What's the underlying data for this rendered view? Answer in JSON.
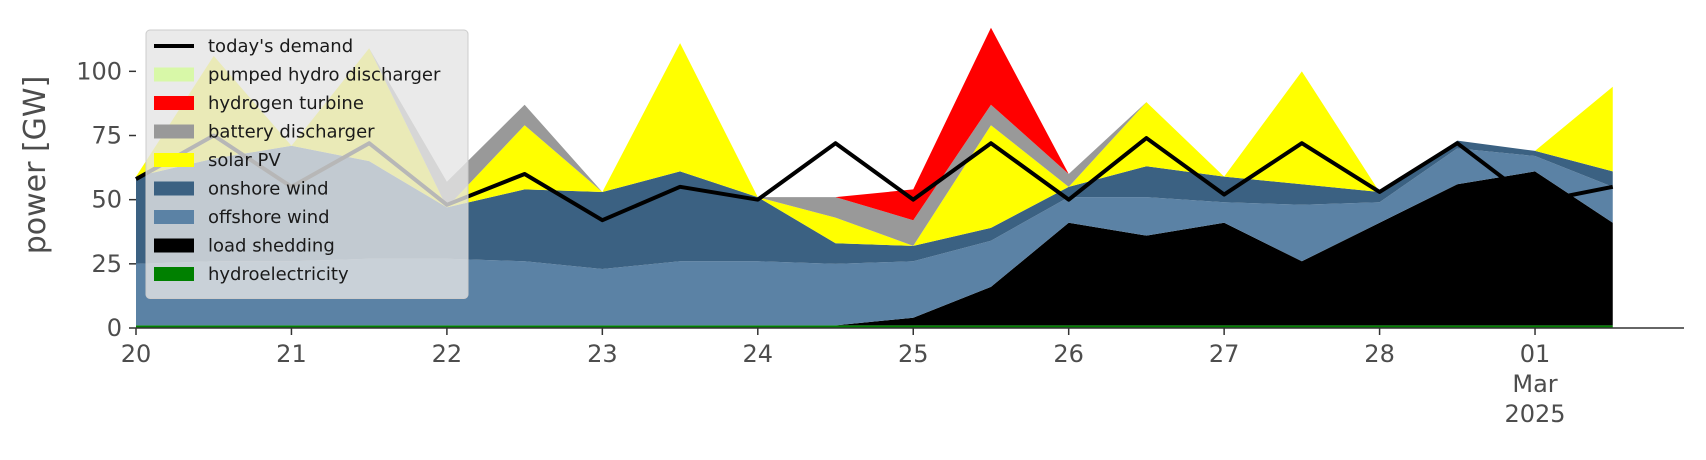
{
  "chart_data": {
    "type": "area",
    "stacked": true,
    "ylabel": "power [GW]",
    "ylim": [
      0,
      120
    ],
    "yticks": [
      0,
      25,
      50,
      75,
      100
    ],
    "xlim": [
      "2025-02-20T00:00",
      "2025-03-01T23:00"
    ],
    "xticks": [
      {
        "label": "20",
        "x": "2025-02-20"
      },
      {
        "label": "21",
        "x": "2025-02-21"
      },
      {
        "label": "22",
        "x": "2025-02-22"
      },
      {
        "label": "23",
        "x": "2025-02-23"
      },
      {
        "label": "24",
        "x": "2025-02-24"
      },
      {
        "label": "25",
        "x": "2025-02-25"
      },
      {
        "label": "26",
        "x": "2025-02-26"
      },
      {
        "label": "27",
        "x": "2025-02-27"
      },
      {
        "label": "28",
        "x": "2025-02-28"
      },
      {
        "label": "01",
        "x": "2025-03-01"
      }
    ],
    "xtick_sublabel": {
      "x": "2025-03-01",
      "month": "Mar",
      "year": "2025"
    },
    "grid": false,
    "legend_position": "top-left",
    "series_order": [
      "hydroelectricity",
      "load shedding",
      "offshore wind",
      "onshore wind",
      "solar PV",
      "battery discharger",
      "hydrogen turbine",
      "pumped hydro discharger"
    ],
    "series": [
      {
        "name": "hydroelectricity",
        "color": "#008000",
        "values": [
          1,
          1,
          1,
          1,
          1,
          1,
          1,
          1,
          1,
          1,
          1,
          1,
          1,
          1,
          1,
          1,
          1,
          1,
          1,
          1
        ]
      },
      {
        "name": "load shedding",
        "color": "#000000",
        "values": [
          0,
          0,
          0,
          0,
          0,
          0,
          0,
          0,
          0,
          0,
          3,
          15,
          40,
          35,
          40,
          25,
          40,
          55,
          60,
          40
        ]
      },
      {
        "name": "offshore wind",
        "color": "#5b82a5",
        "values": [
          24,
          25,
          25,
          26,
          26,
          25,
          22,
          25,
          25,
          24,
          22,
          18,
          10,
          15,
          8,
          22,
          8,
          14,
          6,
          14
        ]
      },
      {
        "name": "onshore wind",
        "color": "#3b6182",
        "values": [
          34,
          40,
          45,
          38,
          20,
          28,
          30,
          35,
          25,
          8,
          6,
          5,
          4,
          12,
          10,
          8,
          4,
          3,
          2,
          6
        ]
      },
      {
        "name": "solar PV",
        "color": "#ffff00",
        "values": [
          0,
          40,
          0,
          44,
          0,
          25,
          0,
          50,
          0,
          10,
          0,
          40,
          0,
          25,
          0,
          44,
          0,
          0,
          0,
          33
        ]
      },
      {
        "name": "battery discharger",
        "color": "#999999",
        "values": [
          0,
          0,
          0,
          0,
          10,
          8,
          0,
          0,
          0,
          8,
          10,
          8,
          5,
          0,
          0,
          0,
          0,
          0,
          0,
          0
        ]
      },
      {
        "name": "hydrogen turbine",
        "color": "#ff0000",
        "values": [
          0,
          0,
          0,
          0,
          0,
          0,
          0,
          0,
          0,
          0,
          12,
          30,
          0,
          0,
          0,
          0,
          0,
          0,
          0,
          0
        ]
      },
      {
        "name": "pumped hydro discharger",
        "color": "#d8f8a8",
        "values": [
          0,
          0,
          0,
          0,
          0,
          0,
          0,
          0,
          0,
          0,
          0,
          0,
          0,
          0,
          0,
          0,
          0,
          0,
          0,
          0
        ]
      }
    ],
    "demand": {
      "name": "today's demand",
      "color": "#000000",
      "values": [
        58,
        75,
        55,
        72,
        48,
        60,
        42,
        55,
        50,
        72,
        50,
        72,
        50,
        74,
        52,
        72,
        53,
        72,
        49,
        55
      ]
    },
    "x_halfdays": [
      "2025-02-20T00",
      "2025-02-20T12",
      "2025-02-21T00",
      "2025-02-21T12",
      "2025-02-22T00",
      "2025-02-22T12",
      "2025-02-23T00",
      "2025-02-23T12",
      "2025-02-24T00",
      "2025-02-24T12",
      "2025-02-25T00",
      "2025-02-25T12",
      "2025-02-26T00",
      "2025-02-26T12",
      "2025-02-27T00",
      "2025-02-27T12",
      "2025-02-28T00",
      "2025-02-28T12",
      "2025-03-01T00",
      "2025-03-01T12"
    ],
    "legend": [
      {
        "label": "today's demand",
        "color": "#000000",
        "kind": "line"
      },
      {
        "label": "pumped hydro discharger",
        "color": "#d8f8a8",
        "kind": "patch"
      },
      {
        "label": "hydrogen turbine",
        "color": "#ff0000",
        "kind": "patch"
      },
      {
        "label": "battery discharger",
        "color": "#999999",
        "kind": "patch"
      },
      {
        "label": "solar PV",
        "color": "#ffff00",
        "kind": "patch"
      },
      {
        "label": "onshore wind",
        "color": "#3b6182",
        "kind": "patch"
      },
      {
        "label": "offshore wind",
        "color": "#5b82a5",
        "kind": "patch"
      },
      {
        "label": "load shedding",
        "color": "#000000",
        "kind": "patch"
      },
      {
        "label": "hydroelectricity",
        "color": "#008000",
        "kind": "patch"
      }
    ]
  }
}
